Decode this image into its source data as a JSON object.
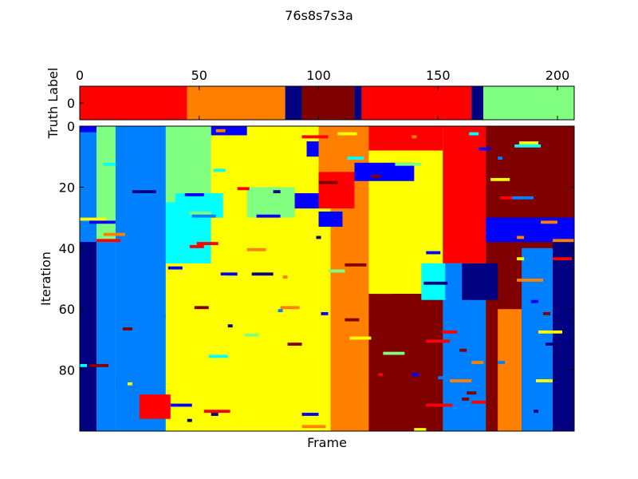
{
  "chart_data": {
    "title": "76s8s7s3a",
    "colormap": "jet",
    "num_labels": 9,
    "truth_bar": {
      "type": "heatmap",
      "ylabel": "Truth Label",
      "xlim": [
        0,
        207
      ],
      "xticks": [
        0,
        50,
        100,
        150,
        200
      ],
      "yticks": [
        0
      ],
      "segments": [
        {
          "start": 0,
          "end": 45,
          "label": 7
        },
        {
          "start": 45,
          "end": 86,
          "label": 6
        },
        {
          "start": 86,
          "end": 93,
          "label": 0
        },
        {
          "start": 93,
          "end": 115,
          "label": 8
        },
        {
          "start": 115,
          "end": 118,
          "label": 0
        },
        {
          "start": 118,
          "end": 164,
          "label": 7
        },
        {
          "start": 164,
          "end": 169,
          "label": 0
        },
        {
          "start": 169,
          "end": 207,
          "label": 4
        }
      ]
    },
    "iterations_map": {
      "type": "heatmap",
      "xlabel": "Frame",
      "ylabel": "Iteration",
      "xlim": [
        0,
        207
      ],
      "ylim": [
        100,
        0
      ],
      "yticks": [
        0,
        20,
        40,
        60,
        80
      ],
      "column_bands": [
        {
          "start": 0,
          "end": 7,
          "label": 1
        },
        {
          "start": 7,
          "end": 15,
          "label": 4
        },
        {
          "start": 15,
          "end": 36,
          "label": 2
        },
        {
          "start": 36,
          "end": 55,
          "label": 3
        },
        {
          "start": 55,
          "end": 78,
          "label": 5
        },
        {
          "start": 78,
          "end": 105,
          "label": 5
        },
        {
          "start": 105,
          "end": 125,
          "label": 6
        },
        {
          "start": 125,
          "end": 152,
          "label": 5
        },
        {
          "start": 152,
          "end": 172,
          "label": 4
        },
        {
          "start": 172,
          "end": 205,
          "label": 8
        },
        {
          "start": 205,
          "end": 207,
          "label": 0
        }
      ],
      "regions": [
        {
          "x": [
            0,
            7
          ],
          "y": [
            0,
            38
          ],
          "label": 2
        },
        {
          "x": [
            0,
            7
          ],
          "y": [
            38,
            100
          ],
          "label": 0
        },
        {
          "x": [
            7,
            15
          ],
          "y": [
            0,
            38
          ],
          "label": 4
        },
        {
          "x": [
            7,
            15
          ],
          "y": [
            38,
            100
          ],
          "label": 2
        },
        {
          "x": [
            15,
            36
          ],
          "y": [
            0,
            100
          ],
          "label": 2
        },
        {
          "x": [
            36,
            55
          ],
          "y": [
            0,
            25
          ],
          "label": 4
        },
        {
          "x": [
            36,
            55
          ],
          "y": [
            25,
            45
          ],
          "label": 3
        },
        {
          "x": [
            36,
            55
          ],
          "y": [
            45,
            100
          ],
          "label": 5
        },
        {
          "x": [
            55,
            78
          ],
          "y": [
            0,
            40
          ],
          "label": 5
        },
        {
          "x": [
            55,
            78
          ],
          "y": [
            40,
            100
          ],
          "label": 5
        },
        {
          "x": [
            78,
            105
          ],
          "y": [
            0,
            100
          ],
          "label": 5
        },
        {
          "x": [
            105,
            121
          ],
          "y": [
            0,
            15
          ],
          "label": 6
        },
        {
          "x": [
            105,
            121
          ],
          "y": [
            15,
            100
          ],
          "label": 6
        },
        {
          "x": [
            121,
            152
          ],
          "y": [
            0,
            8
          ],
          "label": 7
        },
        {
          "x": [
            121,
            152
          ],
          "y": [
            8,
            55
          ],
          "label": 5
        },
        {
          "x": [
            121,
            152
          ],
          "y": [
            55,
            100
          ],
          "label": 8
        },
        {
          "x": [
            152,
            170
          ],
          "y": [
            0,
            45
          ],
          "label": 7
        },
        {
          "x": [
            152,
            170
          ],
          "y": [
            45,
            100
          ],
          "label": 2
        },
        {
          "x": [
            170,
            207
          ],
          "y": [
            0,
            100
          ],
          "label": 8
        }
      ],
      "patches": [
        {
          "x": [
            25,
            38
          ],
          "y": [
            88,
            96
          ],
          "label": 7
        },
        {
          "x": [
            0,
            7
          ],
          "y": [
            0,
            2
          ],
          "label": 1
        },
        {
          "x": [
            55,
            70
          ],
          "y": [
            0,
            3
          ],
          "label": 1
        },
        {
          "x": [
            95,
            110
          ],
          "y": [
            5,
            10
          ],
          "label": 1
        },
        {
          "x": [
            115,
            140
          ],
          "y": [
            12,
            18
          ],
          "label": 1
        },
        {
          "x": [
            85,
            100
          ],
          "y": [
            22,
            27
          ],
          "label": 1
        },
        {
          "x": [
            100,
            110
          ],
          "y": [
            28,
            33
          ],
          "label": 1
        },
        {
          "x": [
            40,
            60
          ],
          "y": [
            22,
            30
          ],
          "label": 3
        },
        {
          "x": [
            100,
            115
          ],
          "y": [
            0,
            15
          ],
          "label": 6
        },
        {
          "x": [
            100,
            115
          ],
          "y": [
            15,
            27
          ],
          "label": 7
        },
        {
          "x": [
            70,
            90
          ],
          "y": [
            20,
            30
          ],
          "label": 4
        },
        {
          "x": [
            131,
            152
          ],
          "y": [
            55,
            100
          ],
          "label": 8
        },
        {
          "x": [
            175,
            185
          ],
          "y": [
            60,
            100
          ],
          "label": 6
        },
        {
          "x": [
            185,
            198
          ],
          "y": [
            40,
            100
          ],
          "label": 2
        },
        {
          "x": [
            160,
            175
          ],
          "y": [
            45,
            57
          ],
          "label": 0
        },
        {
          "x": [
            143,
            153
          ],
          "y": [
            45,
            57
          ],
          "label": 3
        },
        {
          "x": [
            170,
            207
          ],
          "y": [
            30,
            38
          ],
          "label": 1
        },
        {
          "x": [
            198,
            207
          ],
          "y": [
            38,
            100
          ],
          "label": 0
        },
        {
          "x": [
            174,
            207
          ],
          "y": [
            0,
            15
          ],
          "label": 8
        },
        {
          "x": [
            155,
            170
          ],
          "y": [
            2,
            30
          ],
          "label": 7
        }
      ]
    }
  }
}
